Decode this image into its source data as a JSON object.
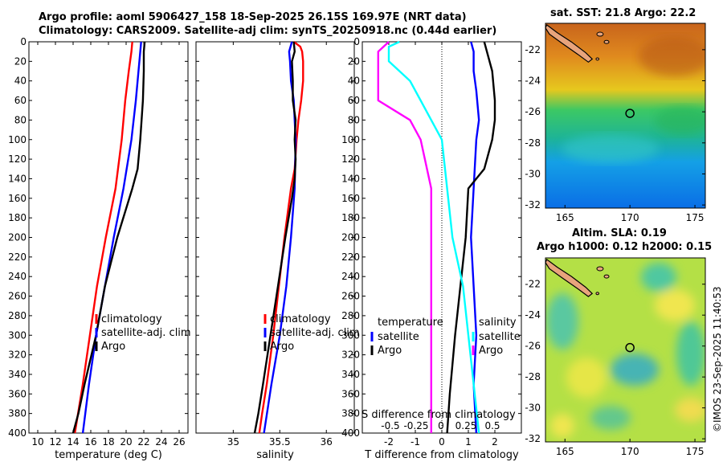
{
  "header": {
    "line1": "Argo profile: aoml 5906427_158 18-Sep-2025 26.15S 169.97E (NRT data)",
    "line2": "Climatology: CARS2009. Satellite-adj clim: synTS_20250918.nc (0.44d earlier)"
  },
  "side_stamp": "©IMOS 23-Sep-2025 11:40:53",
  "colors": {
    "climatology": "#ff0000",
    "satellite": "#0000ff",
    "argo": "#000000",
    "t_diff": "#ff00ff",
    "s_diff": "#00ffff",
    "coast": "#000000",
    "land": "#e8a47c"
  },
  "chart_data": [
    {
      "type": "line",
      "id": "temperature",
      "xlabel": "temperature (deg C)",
      "ylabel": "",
      "xlim": [
        9,
        27
      ],
      "ylim": [
        400,
        0
      ],
      "xticks": [
        10,
        12,
        14,
        16,
        18,
        20,
        22,
        24,
        26
      ],
      "yticks": [
        0,
        20,
        40,
        60,
        80,
        100,
        120,
        140,
        160,
        180,
        200,
        220,
        240,
        260,
        280,
        300,
        320,
        340,
        360,
        380,
        400
      ],
      "legend": [
        "climatology",
        "satellite-adj. clim",
        "Argo"
      ],
      "series": [
        {
          "name": "climatology",
          "color": "#ff0000",
          "depth": [
            0,
            10,
            30,
            60,
            100,
            150,
            200,
            250,
            300,
            350,
            400
          ],
          "values": [
            20.7,
            20.6,
            20.3,
            19.9,
            19.5,
            18.8,
            17.7,
            16.7,
            15.9,
            15.1,
            14.2
          ]
        },
        {
          "name": "satellite-adj. clim",
          "color": "#0000ff",
          "depth": [
            0,
            10,
            30,
            60,
            100,
            150,
            200,
            250,
            300,
            350,
            400
          ],
          "values": [
            21.7,
            21.6,
            21.4,
            21.1,
            20.6,
            19.7,
            18.6,
            17.6,
            16.6,
            15.8,
            15.1
          ]
        },
        {
          "name": "Argo",
          "color": "#000000",
          "depth": [
            0,
            10,
            30,
            60,
            100,
            130,
            150,
            200,
            250,
            300,
            350,
            380,
            400
          ],
          "values": [
            22.1,
            22.0,
            22.0,
            21.9,
            21.6,
            21.3,
            20.7,
            19.0,
            17.6,
            16.6,
            15.3,
            14.6,
            14.0
          ]
        }
      ]
    },
    {
      "type": "line",
      "id": "salinity",
      "xlabel": "salinity",
      "xlim": [
        34.6,
        36.3
      ],
      "ylim": [
        400,
        0
      ],
      "xticks": [
        35,
        35.5,
        36
      ],
      "xticklabels": [
        "35",
        "35.5",
        "36"
      ],
      "legend": [
        "climatology",
        "satellite-adj. clim",
        "Argo"
      ],
      "series": [
        {
          "name": "climatology",
          "color": "#ff0000",
          "depth": [
            0,
            5,
            10,
            20,
            40,
            60,
            80,
            100,
            130,
            150,
            200,
            250,
            300,
            350,
            380,
            400
          ],
          "values": [
            35.65,
            35.72,
            35.74,
            35.75,
            35.75,
            35.73,
            35.7,
            35.68,
            35.66,
            35.62,
            35.55,
            35.49,
            35.43,
            35.36,
            35.31,
            35.28
          ]
        },
        {
          "name": "satellite-adj. clim",
          "color": "#0000ff",
          "depth": [
            0,
            10,
            20,
            40,
            60,
            80,
            100,
            150,
            200,
            250,
            300,
            350,
            400
          ],
          "values": [
            35.63,
            35.6,
            35.61,
            35.62,
            35.65,
            35.66,
            35.67,
            35.66,
            35.62,
            35.57,
            35.5,
            35.41,
            35.33
          ]
        },
        {
          "name": "Argo",
          "color": "#000000",
          "depth": [
            0,
            10,
            20,
            40,
            60,
            80,
            100,
            120,
            140,
            160,
            200,
            250,
            300,
            350,
            380,
            400
          ],
          "values": [
            35.65,
            35.66,
            35.63,
            35.64,
            35.64,
            35.67,
            35.66,
            35.67,
            35.66,
            35.63,
            35.56,
            35.48,
            35.4,
            35.32,
            35.27,
            35.23
          ]
        }
      ]
    },
    {
      "type": "line",
      "id": "differences",
      "xlabel": "T difference from climatology",
      "xlabel_top": "S difference from climatology",
      "xlim": [
        -3,
        3
      ],
      "ylim": [
        400,
        0
      ],
      "xticks": [
        -2,
        -1,
        0,
        1,
        2
      ],
      "xticklabels": [
        "-2",
        "-1",
        "0",
        "1",
        "2"
      ],
      "s_ticks": [
        "-0.5",
        "-0.25",
        "0",
        "0.25",
        "0.5"
      ],
      "legend_left_title": "temperature",
      "legend_right_title": "salinity",
      "legend_left": [
        "satellite",
        "Argo"
      ],
      "legend_right": [
        "satellite",
        "Argo"
      ],
      "series": [
        {
          "name": "T satellite",
          "color": "#0000ff",
          "depth": [
            0,
            10,
            30,
            50,
            80,
            100,
            150,
            200,
            250,
            300,
            350,
            400
          ],
          "values": [
            1.1,
            1.2,
            1.2,
            1.3,
            1.4,
            1.3,
            1.2,
            1.1,
            1.2,
            1.3,
            1.2,
            1.3
          ]
        },
        {
          "name": "T Argo",
          "color": "#000000",
          "depth": [
            0,
            10,
            30,
            60,
            80,
            100,
            130,
            150,
            200,
            250,
            300,
            330,
            360,
            400
          ],
          "values": [
            1.6,
            1.7,
            1.9,
            2.0,
            2.0,
            1.9,
            1.6,
            1.0,
            0.9,
            0.7,
            0.5,
            0.4,
            0.3,
            0.2
          ]
        },
        {
          "name": "S satellite",
          "color": "#00ffff",
          "depth": [
            0,
            5,
            10,
            20,
            40,
            60,
            100,
            150,
            200,
            250,
            300,
            350,
            400
          ],
          "values": [
            -0.4,
            -0.5,
            -0.5,
            -0.5,
            -0.3,
            -0.2,
            0.0,
            0.05,
            0.1,
            0.2,
            0.25,
            0.3,
            0.35
          ]
        },
        {
          "name": "S Argo",
          "color": "#ff00ff",
          "depth": [
            0,
            10,
            20,
            40,
            60,
            80,
            100,
            150,
            200,
            250,
            300,
            350,
            400
          ],
          "values": [
            -0.5,
            -0.6,
            -0.6,
            -0.6,
            -0.6,
            -0.3,
            -0.2,
            -0.1,
            -0.1,
            -0.1,
            -0.1,
            -0.1,
            -0.1
          ]
        }
      ]
    },
    {
      "type": "heatmap",
      "id": "sst_map",
      "title": "sat. SST: 21.8 Argo: 22.2",
      "xticks": [
        165,
        170,
        175
      ],
      "yticks": [
        -22,
        -24,
        -26,
        -28,
        -30,
        -32
      ],
      "xlim": [
        163.5,
        175.8
      ],
      "ylim": [
        -32.2,
        -20.3
      ],
      "marker": {
        "lon": 170.0,
        "lat": -26.1
      }
    },
    {
      "type": "heatmap",
      "id": "sla_map",
      "title": "Altim. SLA: 0.19",
      "subtitle": "Argo h1000: 0.12 h2000: 0.15",
      "xticks": [
        165,
        170,
        175
      ],
      "yticks": [
        -22,
        -24,
        -26,
        -28,
        -30,
        -32
      ],
      "xlim": [
        163.5,
        175.8
      ],
      "ylim": [
        -32.2,
        -20.3
      ],
      "marker": {
        "lon": 170.0,
        "lat": -26.1
      }
    }
  ]
}
